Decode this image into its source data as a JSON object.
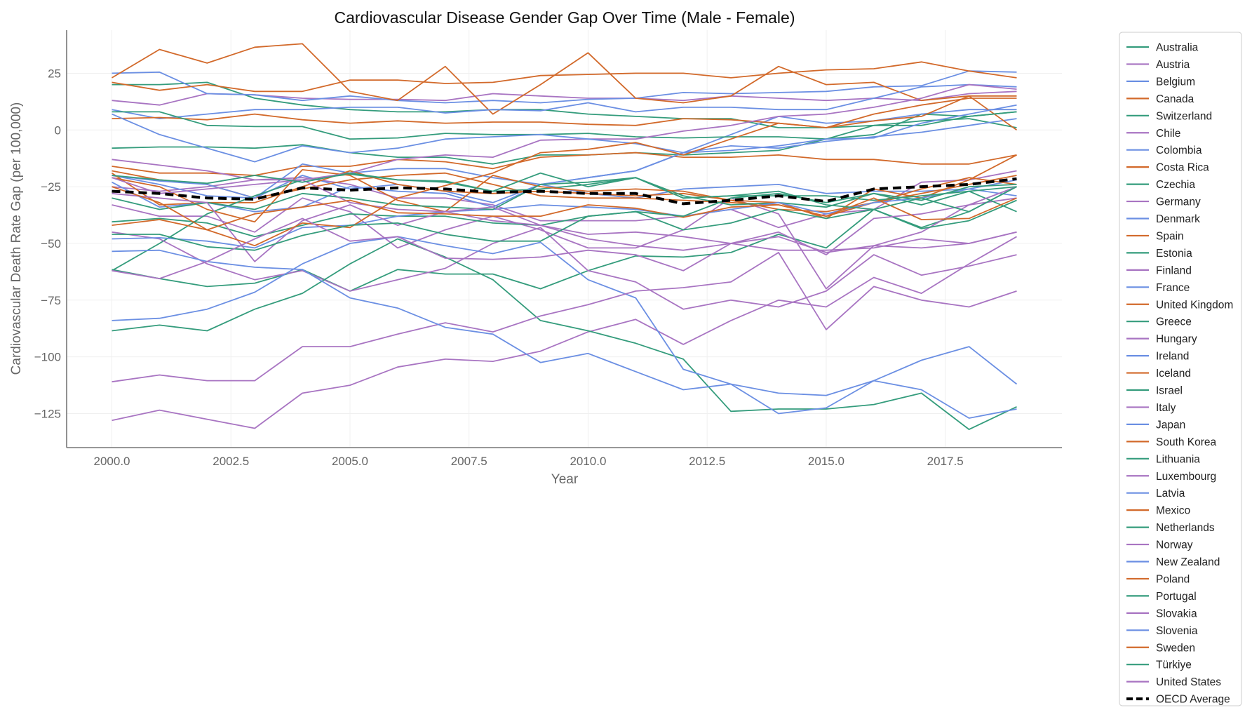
{
  "chart_data": {
    "type": "line",
    "title": "Cardiovascular Disease Gender Gap Over Time (Male - Female)",
    "xlabel": "Year",
    "ylabel": "Cardiovascular Death Rate Gap (per 100,000)",
    "xlim": [
      1999.05,
      2019.95
    ],
    "ylim": [
      -140,
      44
    ],
    "x_ticks": [
      "2000.0",
      "2002.5",
      "2005.0",
      "2007.5",
      "2010.0",
      "2012.5",
      "2015.0",
      "2017.5"
    ],
    "x_tick_values": [
      2000,
      2002.5,
      2005,
      2007.5,
      2010,
      2012.5,
      2015,
      2017.5
    ],
    "y_ticks": [
      "25",
      "0",
      "−25",
      "−50",
      "−75",
      "−100",
      "−125"
    ],
    "y_tick_values": [
      25,
      0,
      -25,
      -50,
      -75,
      -100,
      -125
    ],
    "grid": true,
    "legend_placement": "outside-right",
    "colors": {
      "teal": "#349c7c",
      "purple": "#a874c2",
      "blue": "#6b8fe3",
      "orange": "#d2692a",
      "average": "#000000"
    },
    "x": [
      2000,
      2001,
      2002,
      2003,
      2004,
      2005,
      2006,
      2007,
      2008,
      2009,
      2010,
      2011,
      2012,
      2013,
      2014,
      2015,
      2016,
      2017,
      2018,
      2019
    ],
    "series": [
      {
        "name": "Australia",
        "color": "teal",
        "values": [
          -8,
          -7.5,
          -7.5,
          -8,
          -6.5,
          -10,
          -12,
          -12,
          -15,
          -11,
          -11,
          -10,
          -11,
          -10,
          -9,
          -4,
          -2,
          7,
          6,
          8
        ]
      },
      {
        "name": "Austria",
        "color": "purple",
        "values": [
          -25,
          -27,
          -25,
          -22,
          -21,
          -24,
          -30,
          -30,
          -33,
          -40,
          -40,
          -40,
          -38,
          -35,
          -43,
          -37,
          -35,
          -23,
          -22,
          -18
        ]
      },
      {
        "name": "Belgium",
        "color": "blue",
        "values": [
          -20,
          -24,
          -29,
          -30,
          -20,
          -26,
          -24,
          -27,
          -32,
          -24,
          -28,
          -30,
          -26,
          -25,
          -24,
          -28,
          -27,
          -27,
          -26,
          -22
        ]
      },
      {
        "name": "Canada",
        "color": "orange",
        "values": [
          -18,
          -22,
          -24,
          -30,
          -26,
          -22,
          -20,
          -19,
          -24,
          -29,
          -30,
          -30,
          -31,
          -32,
          -33,
          -38,
          -32,
          -26,
          -21,
          -24
        ]
      },
      {
        "name": "Switzerland",
        "color": "teal",
        "values": [
          20,
          20,
          21,
          14,
          11,
          9,
          8,
          8,
          9,
          9,
          7,
          6,
          5,
          5,
          1,
          1,
          2,
          4,
          5,
          1
        ]
      },
      {
        "name": "Chile",
        "color": "purple",
        "values": [
          13,
          11,
          16,
          15.5,
          14,
          13.5,
          13.5,
          13,
          16,
          15,
          14,
          14,
          13,
          15,
          14,
          13,
          14,
          13,
          16,
          17
        ]
      },
      {
        "name": "Colombia",
        "color": "blue",
        "values": [
          25,
          25.5,
          16,
          15.5,
          13,
          15,
          13,
          12,
          13,
          12,
          13.5,
          14,
          16.5,
          16,
          16.5,
          17,
          19,
          19.5,
          26,
          25.5
        ]
      },
      {
        "name": "Costa Rica",
        "color": "orange",
        "values": [
          -16,
          -19,
          -19,
          -20,
          -16,
          -16,
          -13,
          -14,
          -17,
          -12,
          -11,
          -10,
          -12,
          -12,
          -11,
          -13,
          -13,
          -15,
          -15,
          -11
        ]
      },
      {
        "name": "Czechia",
        "color": "teal",
        "values": [
          -61.5,
          -65.5,
          -69,
          -67.5,
          -61.5,
          -71,
          -61.5,
          -63.5,
          -63.5,
          -70,
          -62,
          -55.5,
          -56,
          -54,
          -46,
          -52,
          -35,
          -43,
          -36,
          -25
        ]
      },
      {
        "name": "Germany",
        "color": "purple",
        "values": [
          -33,
          -38,
          -38,
          -45,
          -30,
          -36,
          -52,
          -44,
          -38,
          -44,
          -52,
          -52,
          -44,
          -30,
          -37,
          -70,
          -51,
          -45,
          -33,
          -30
        ]
      },
      {
        "name": "Denmark",
        "color": "blue",
        "values": [
          -20,
          -22.5,
          -24,
          -30,
          -15,
          -19,
          -17,
          -17,
          -21,
          -24,
          -21,
          -18,
          -10,
          -2,
          6,
          3,
          4,
          7,
          9,
          9
        ]
      },
      {
        "name": "Spain",
        "color": "orange",
        "values": [
          -19,
          -33,
          -32,
          -32,
          -25,
          -18,
          -24,
          -27,
          -28,
          -27,
          -28,
          -29,
          -28,
          -31,
          -35,
          -36,
          -32,
          -28,
          -24,
          -20
        ]
      },
      {
        "name": "Estonia",
        "color": "teal",
        "values": [
          -62,
          -50,
          -37,
          -29,
          -22,
          -19.5,
          -22,
          -22.5,
          -27,
          -26,
          -24,
          -21,
          -29,
          -33,
          -32,
          -34,
          -28,
          -33,
          -27,
          -36
        ]
      },
      {
        "name": "Finland",
        "color": "purple",
        "values": [
          -45,
          -48,
          -59,
          -66,
          -62,
          -71,
          -66,
          -61,
          -50,
          -43,
          -62,
          -67,
          -79,
          -75,
          -78,
          -71,
          -55,
          -64,
          -60,
          -55
        ]
      },
      {
        "name": "France",
        "color": "blue",
        "values": [
          -23,
          -34,
          -32,
          -36,
          -34,
          -25,
          -27,
          -28,
          -34,
          -24,
          -21,
          -18,
          -10,
          -7,
          -8,
          -5,
          -3,
          -1,
          2,
          5
        ]
      },
      {
        "name": "United Kingdom",
        "color": "orange",
        "values": [
          -21,
          -25,
          -35,
          -40.5,
          -17.5,
          -20,
          -31,
          -36,
          -20,
          -25,
          -27,
          -26,
          -27,
          -31,
          -32,
          -39,
          -26,
          -30,
          -22,
          -11
        ]
      },
      {
        "name": "Greece",
        "color": "teal",
        "values": [
          -40.5,
          -39,
          -41,
          -47,
          -42,
          -37,
          -38,
          -38,
          -41,
          -42,
          -38,
          -36,
          -44,
          -41,
          -35,
          -39,
          -35,
          -43.5,
          -40,
          -31
        ]
      },
      {
        "name": "Hungary",
        "color": "purple",
        "values": [
          -128,
          -123.5,
          -127.5,
          -131.5,
          -116,
          -112.5,
          -104.5,
          -101,
          -102,
          -97.5,
          -89,
          -83.5,
          -94.5,
          -84,
          -75,
          -78,
          -65,
          -72,
          -59,
          -47
        ]
      },
      {
        "name": "Ireland",
        "color": "blue",
        "values": [
          -48,
          -47.5,
          -49,
          -52,
          -43,
          -42,
          -38,
          -36,
          -35,
          -33,
          -34,
          -35,
          -38,
          -35,
          -32,
          -37,
          -32,
          -30,
          -26,
          -29
        ]
      },
      {
        "name": "Iceland",
        "color": "orange",
        "values": [
          23,
          35.5,
          29.5,
          36.5,
          38,
          17,
          13,
          28,
          7,
          20,
          34,
          14,
          12,
          15,
          28,
          20,
          21,
          13,
          15,
          0
        ]
      },
      {
        "name": "Israel",
        "color": "teal",
        "values": [
          -30,
          -35,
          -32,
          -35,
          -28,
          -30,
          -33,
          -34,
          -35,
          -24,
          -23,
          -21,
          -30,
          -29,
          -29,
          -29,
          -31,
          -29,
          -27,
          -25
        ]
      },
      {
        "name": "Italy",
        "color": "purple",
        "values": [
          -28,
          -30,
          -32,
          -58,
          -40,
          -33,
          -42,
          -36,
          -34,
          -42,
          -46,
          -45,
          -47,
          -50,
          -45,
          -55,
          -39,
          -37,
          -33,
          -25
        ]
      },
      {
        "name": "Japan",
        "color": "blue",
        "values": [
          9,
          5,
          7,
          9,
          9,
          10,
          10,
          7.5,
          9,
          8.5,
          12,
          8,
          10,
          10,
          9,
          9,
          14,
          19,
          20,
          19
        ]
      },
      {
        "name": "South Korea",
        "color": "orange",
        "values": [
          21,
          17.5,
          20,
          17,
          17,
          22,
          22,
          20.5,
          21,
          24,
          24.5,
          25,
          25,
          23,
          25,
          26.5,
          27,
          30,
          26,
          23
        ]
      },
      {
        "name": "Lithuania",
        "color": "teal",
        "values": [
          -88.5,
          -86,
          -88.5,
          -79,
          -72,
          -59,
          -48,
          -56,
          -66,
          -84,
          -88.5,
          -94,
          -101,
          -124,
          -123,
          -123,
          -121,
          -116,
          -132,
          -122
        ]
      },
      {
        "name": "Luxembourg",
        "color": "purple",
        "values": [
          -21,
          -28,
          -26,
          -24,
          -22,
          -32,
          -35,
          -36,
          -40,
          -42,
          -48,
          -51,
          -53,
          -50,
          -47,
          -54,
          -51,
          -52,
          -50,
          -45
        ]
      },
      {
        "name": "Latvia",
        "color": "blue",
        "values": [
          -84,
          -83,
          -79,
          -71.5,
          -59,
          -50,
          -47,
          -51,
          -54.5,
          -49.5,
          -66,
          -74,
          -105.5,
          -112,
          -116,
          -117,
          -110.5,
          -101.5,
          -95.5,
          -112
        ]
      },
      {
        "name": "Mexico",
        "color": "orange",
        "values": [
          5,
          5.5,
          4.5,
          7,
          4.5,
          3,
          4,
          3,
          3.5,
          3.5,
          2.5,
          2,
          5,
          4.5,
          3,
          1,
          7,
          11,
          14,
          14
        ]
      },
      {
        "name": "Netherlands",
        "color": "teal",
        "values": [
          8,
          8,
          2,
          1.5,
          1.5,
          -4,
          -3.5,
          -1.5,
          -2,
          -2,
          -1.5,
          -3,
          -3.5,
          -3,
          -3,
          -4,
          2,
          2,
          6,
          8
        ]
      },
      {
        "name": "Norway",
        "color": "purple",
        "values": [
          -13,
          -15.5,
          -18,
          -22,
          -22,
          -19,
          -13,
          -11,
          -12,
          -4.5,
          -4,
          -4,
          -0.5,
          2,
          6,
          7,
          10,
          14,
          20,
          18
        ]
      },
      {
        "name": "New Zealand",
        "color": "blue",
        "values": [
          7,
          -2,
          -8,
          -14,
          -7,
          -10,
          -8,
          -4,
          -3,
          -2,
          -4,
          -6,
          -10,
          -9,
          -7,
          -4,
          -3.5,
          3,
          7,
          11
        ]
      },
      {
        "name": "Poland",
        "color": "orange",
        "values": [
          -42,
          -39.5,
          -44,
          -37,
          -34,
          -31,
          -36.5,
          -37,
          -38,
          -38,
          -33,
          -34.5,
          -38.5,
          -34,
          -33,
          -38,
          -30,
          -39.5,
          -39,
          -30
        ]
      },
      {
        "name": "Portugal",
        "color": "teal",
        "values": [
          -20,
          -22,
          -23.5,
          -20,
          -23,
          -19,
          -22,
          -23,
          -27,
          -19,
          -25,
          -21,
          -30,
          -29,
          -27,
          -33,
          -35,
          -30,
          -36,
          -25
        ]
      },
      {
        "name": "Slovakia",
        "color": "purple",
        "values": [
          -111,
          -108,
          -110.5,
          -110.5,
          -95.5,
          -95.5,
          -90,
          -85,
          -89,
          -82,
          -77,
          -71,
          -69.5,
          -67,
          -54,
          -88,
          -69,
          -75,
          -78,
          -71
        ]
      },
      {
        "name": "Slovenia",
        "color": "blue",
        "values": [
          -53.5,
          -53,
          -58,
          -60.5,
          -61.5,
          -74,
          -78.5,
          -87,
          -90,
          -102.5,
          -98.5,
          -106.5,
          -114.5,
          -112,
          -125,
          -122.5,
          -110.5,
          -114.5,
          -127,
          -123
        ]
      },
      {
        "name": "Sweden",
        "color": "orange",
        "values": [
          -25,
          -32,
          -44,
          -51,
          -41,
          -43,
          -30,
          -24.5,
          -19,
          -10,
          -8.5,
          -5.5,
          -11,
          -4,
          3,
          1,
          4,
          6,
          15,
          15
        ]
      },
      {
        "name": "Türkiye",
        "color": "teal",
        "values": [
          -46,
          -46,
          -51.5,
          -53,
          -46.5,
          -42,
          -41,
          -46,
          -49,
          -49,
          -38,
          -36,
          -38,
          -30,
          -28,
          -32,
          -28,
          -31,
          -25,
          -24
        ]
      },
      {
        "name": "United States",
        "color": "purple",
        "values": [
          -62,
          -65.5,
          -58,
          -48,
          -39,
          -49,
          -47,
          -56.5,
          -57,
          -56,
          -53,
          -55,
          -62,
          -50,
          -53,
          -53,
          -52,
          -48,
          -50,
          -45
        ]
      },
      {
        "name": "OECD Average",
        "color": "average",
        "dashed": true,
        "values": [
          -27,
          -28,
          -30,
          -30.5,
          -25.5,
          -26.5,
          -25.5,
          -26,
          -27.5,
          -27,
          -28,
          -28,
          -32.5,
          -31,
          -29,
          -31.5,
          -26,
          -25,
          -24,
          -21.5
        ]
      }
    ]
  }
}
